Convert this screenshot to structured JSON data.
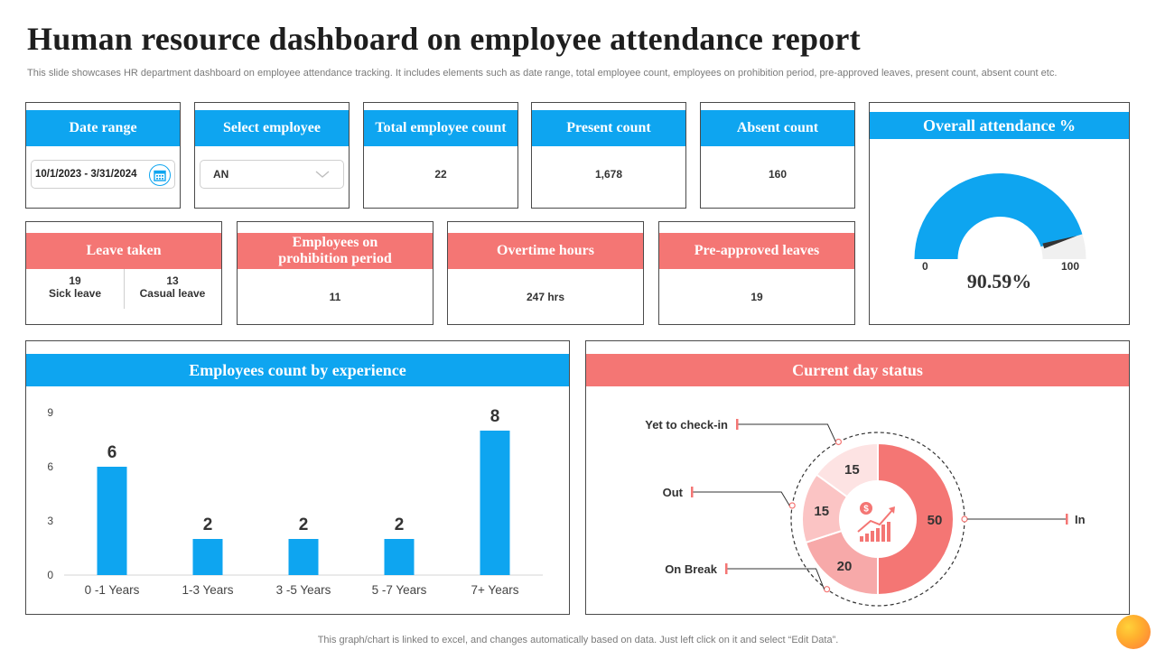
{
  "page": {
    "title": "Human resource dashboard on employee attendance report",
    "subtitle": "This slide showcases HR department dashboard on employee attendance tracking. It includes elements such as date range, total employee count, employees on prohibition period, pre-approved leaves, present count, absent count etc.",
    "footnote": "This graph/chart is linked to excel,  and changes automatically based on data. Just left click on it and select “Edit Data”."
  },
  "colors": {
    "blue": "#0ea5f0",
    "red": "#f47674",
    "pink_light": "#fbd3d3",
    "pink_mid": "#f7a9a9"
  },
  "kpis": {
    "date_range": {
      "label": "Date range",
      "value": "10/1/2023 - 3/31/2024",
      "icon": "calendar-icon"
    },
    "select_employee": {
      "label": "Select employee",
      "value": "AN",
      "icon": "chevron-down-icon"
    },
    "total_employee": {
      "label": "Total employee count",
      "value": "22"
    },
    "present": {
      "label": "Present count",
      "value": "1,678"
    },
    "absent": {
      "label": "Absent count",
      "value": "160"
    },
    "leave_taken": {
      "label": "Leave taken",
      "sick_value": "19",
      "sick_label": "Sick leave",
      "casual_value": "13",
      "casual_label": "Casual leave"
    },
    "prohibition": {
      "label": "Employees on prohibition period",
      "value": "11"
    },
    "overtime": {
      "label": "Overtime hours",
      "value": "247 hrs"
    },
    "preapproved": {
      "label": "Pre-approved leaves",
      "value": "19"
    }
  },
  "attendance": {
    "label": "Overall attendance %",
    "value_text": "90.59%",
    "value": 90.59,
    "min_label": "0",
    "max_label": "100"
  },
  "chart_data": [
    {
      "type": "bar",
      "title": "Employees count by experience",
      "categories": [
        "0 -1 Years",
        "1-3 Years",
        "3 -5 Years",
        "5 -7 Years",
        "7+ Years"
      ],
      "values": [
        6,
        2,
        2,
        2,
        8
      ],
      "value_labels": [
        "6",
        "2",
        "2",
        "2",
        "8"
      ],
      "yticks": [
        "0",
        "3",
        "6",
        "9"
      ],
      "ylim": [
        0,
        9
      ],
      "color": "#0ea5f0",
      "grid": false
    },
    {
      "type": "pie",
      "title": "Current day status",
      "labels": [
        "In",
        "On Break",
        "Out",
        "Yet to check-in"
      ],
      "values": [
        50,
        20,
        15,
        15
      ],
      "value_labels": [
        "50",
        "20",
        "15",
        "15"
      ],
      "colors": [
        "#f47674",
        "#f7a9a9",
        "#fbc4c4",
        "#fde3e3"
      ],
      "center_icon": "money-growth-icon"
    }
  ]
}
